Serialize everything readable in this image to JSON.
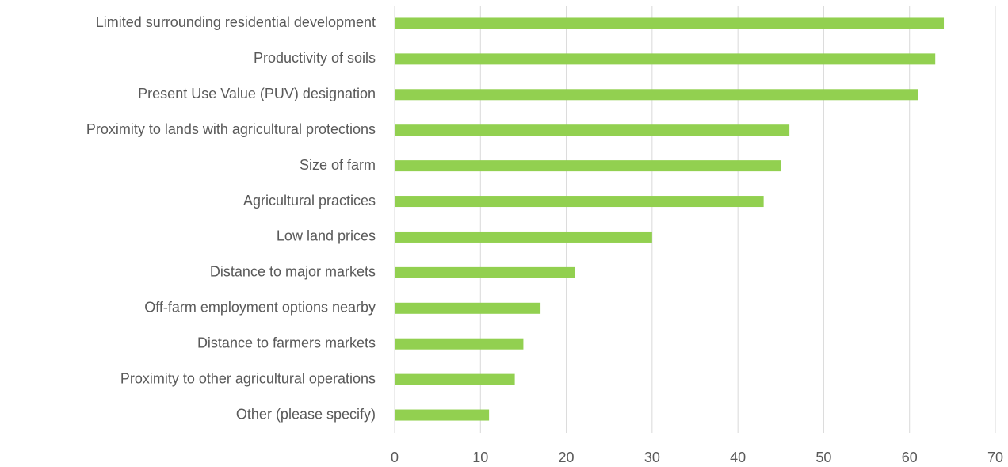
{
  "chart_data": {
    "type": "bar",
    "orientation": "horizontal",
    "categories": [
      "Limited surrounding residential development",
      "Productivity of soils",
      "Present Use Value (PUV) designation",
      "Proximity to lands with agricultural protections",
      "Size of farm",
      "Agricultural practices",
      "Low land prices",
      "Distance to major markets",
      "Off-farm employment options nearby",
      "Distance to farmers markets",
      "Proximity to other agricultural operations",
      "Other (please specify)"
    ],
    "values": [
      64,
      63,
      61,
      46,
      45,
      43,
      30,
      21,
      17,
      15,
      14,
      11
    ],
    "color": "#92d050",
    "xlim": [
      0,
      70
    ],
    "xticks": [
      0,
      10,
      20,
      30,
      40,
      50,
      60,
      70
    ],
    "grid": true
  }
}
